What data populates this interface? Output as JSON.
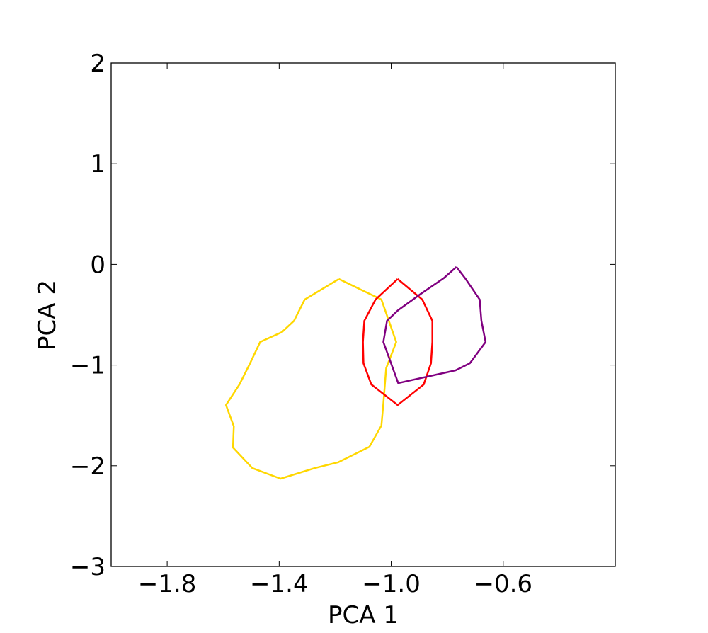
{
  "chart_data": {
    "type": "line",
    "xlabel": "PCA 1",
    "ylabel": "PCA 2",
    "xlim": [
      -2.0,
      -0.2
    ],
    "xticks": [
      {
        "value": -1.8,
        "label": "−1.8"
      },
      {
        "value": -1.4,
        "label": "−1.4"
      },
      {
        "value": -1.0,
        "label": "−1.0"
      },
      {
        "value": -0.6,
        "label": "−0.6"
      }
    ],
    "ylim": [
      -3,
      2
    ],
    "yticks": [
      {
        "value": -3,
        "label": "−3"
      },
      {
        "value": -2,
        "label": "−2"
      },
      {
        "value": -1,
        "label": "−1"
      },
      0,
      1,
      2
    ],
    "series": [
      {
        "color": "#ffd700",
        "x": [
          -1.187,
          -1.035,
          -0.982,
          -1.018,
          -1.028,
          -1.035,
          -1.078,
          -1.19,
          -1.273,
          -1.395,
          -1.496,
          -1.565,
          -1.562,
          -1.59,
          -1.542,
          -1.504,
          -1.468,
          -1.39,
          -1.347,
          -1.309,
          -1.187
        ],
        "values": [
          -0.145,
          -0.349,
          -0.771,
          -1.031,
          -1.383,
          -1.601,
          -1.812,
          -1.966,
          -2.023,
          -2.128,
          -2.023,
          -1.819,
          -1.608,
          -1.397,
          -1.193,
          -0.982,
          -0.771,
          -0.672,
          -0.56,
          -0.349,
          -0.145
        ]
      },
      {
        "color": "#ff0000",
        "x": [
          -0.977,
          -0.889,
          -0.853,
          -0.853,
          -0.858,
          -0.884,
          -0.977,
          -1.071,
          -1.099,
          -1.101,
          -1.096,
          -1.056,
          -0.977
        ],
        "values": [
          -0.145,
          -0.349,
          -0.56,
          -0.771,
          -0.982,
          -1.193,
          -1.397,
          -1.193,
          -0.982,
          -0.771,
          -0.56,
          -0.349,
          -0.145
        ]
      },
      {
        "color": "#800080",
        "x": [
          -0.767,
          -0.734,
          -0.684,
          -0.678,
          -0.663,
          -0.719,
          -0.77,
          -0.975,
          -1.028,
          -1.015,
          -0.975,
          -0.891,
          -0.813,
          -0.767
        ],
        "values": [
          -0.025,
          -0.145,
          -0.349,
          -0.56,
          -0.771,
          -0.982,
          -1.052,
          -1.179,
          -0.771,
          -0.56,
          -0.454,
          -0.286,
          -0.138,
          -0.025
        ]
      }
    ]
  }
}
